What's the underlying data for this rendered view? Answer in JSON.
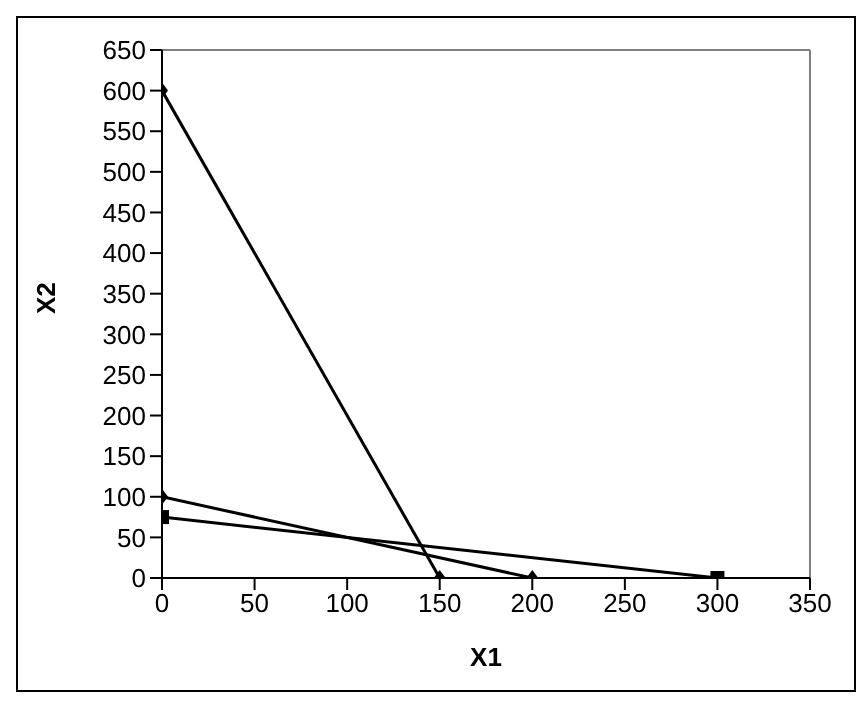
{
  "chart_data": {
    "type": "line",
    "xlabel": "X1",
    "ylabel": "X2",
    "series": [
      {
        "x": [
          0,
          150
        ],
        "values": [
          600,
          0
        ],
        "color": "#000000",
        "marker": "diamond"
      },
      {
        "x": [
          0,
          200
        ],
        "values": [
          100,
          0
        ],
        "color": "#000000",
        "marker": "diamond"
      },
      {
        "x": [
          0,
          300
        ],
        "values": [
          75,
          0
        ],
        "color": "#000000",
        "marker": "square"
      }
    ],
    "xlim": [
      0,
      350
    ],
    "xticks": [
      0,
      50,
      100,
      150,
      200,
      250,
      300,
      350
    ],
    "ylim": [
      0,
      650
    ],
    "yticks": [
      0,
      50,
      100,
      150,
      200,
      250,
      300,
      350,
      400,
      450,
      500,
      550,
      600,
      650
    ],
    "grid": false,
    "legend": false,
    "line_style": "solid"
  }
}
